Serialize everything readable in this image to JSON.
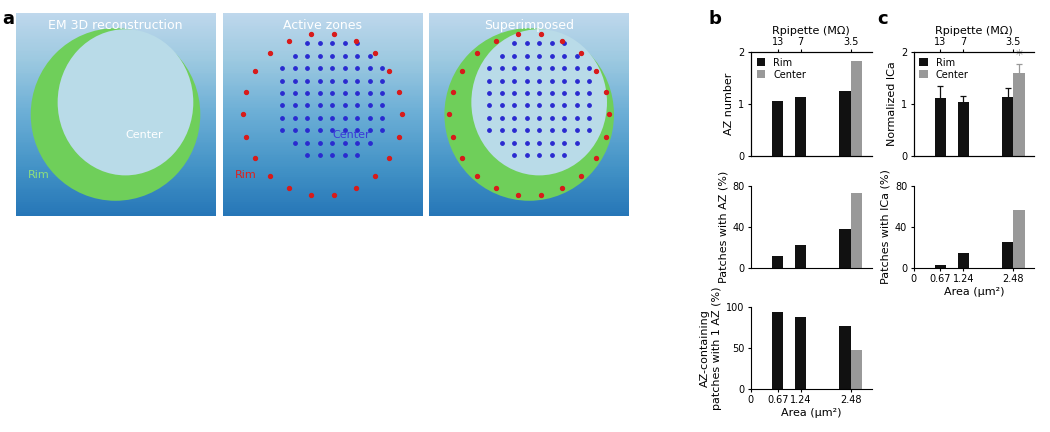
{
  "panel_labels": [
    "a",
    "b",
    "c"
  ],
  "panel_a": {
    "images": [
      {
        "title": "EM 3D reconstruction",
        "labels": [
          {
            "text": "Rim",
            "color": "#8fe07a"
          },
          {
            "text": "Center",
            "color": "#ffffff"
          }
        ]
      },
      {
        "title": "Active zones",
        "labels": [
          {
            "text": "Rim",
            "color": "#e0201b"
          },
          {
            "text": "Center",
            "color": "#3a3ad8"
          }
        ]
      },
      {
        "title": "Superimposed",
        "labels": []
      }
    ]
  },
  "chart_data": [
    {
      "type": "bar",
      "ylabel": "AZ number",
      "xlim": [
        0,
        3
      ],
      "ylim": [
        0,
        2
      ],
      "yticks": [
        0,
        1,
        2
      ],
      "x2label": "Rpipette (MΩ)",
      "x2ticks": [
        {
          "value": 0.67,
          "label": "13"
        },
        {
          "value": 1.24,
          "label": "7"
        },
        {
          "value": 2.48,
          "label": "3.5"
        }
      ],
      "tick_labels": "y",
      "legend": "upper left",
      "series": [
        {
          "name": "Rim",
          "color": "#111111",
          "x": [
            0.67,
            1.24,
            2.48
          ],
          "values": [
            1.05,
            1.13,
            1.25
          ]
        },
        {
          "name": "Center",
          "color": "#999999",
          "x": [
            2.48
          ],
          "values": [
            1.83
          ]
        }
      ]
    },
    {
      "type": "bar",
      "ylabel": "Patches with AZ (%)",
      "xlim": [
        0,
        3
      ],
      "ylim": [
        0,
        80
      ],
      "yticks": [
        0,
        40,
        80
      ],
      "tick_labels": "y",
      "series": [
        {
          "color": "#111111",
          "x": [
            0.67,
            1.24,
            2.48
          ],
          "values": [
            12,
            22,
            38
          ]
        },
        {
          "color": "#999999",
          "x": [
            2.48
          ],
          "values": [
            73
          ]
        }
      ]
    },
    {
      "type": "bar",
      "ylabel": "AZ-containing\npatches with 1 AZ (%)",
      "xlabel": "Area (μm²)",
      "xlim": [
        0,
        3
      ],
      "xticks": [
        0,
        0.67,
        1.24,
        2.48
      ],
      "ylim": [
        0,
        100
      ],
      "yticks": [
        0,
        50,
        100
      ],
      "series": [
        {
          "color": "#111111",
          "x": [
            0.67,
            1.24,
            2.48
          ],
          "values": [
            94,
            88,
            77
          ]
        },
        {
          "color": "#999999",
          "x": [
            2.48
          ],
          "values": [
            47
          ]
        }
      ]
    },
    {
      "type": "bar",
      "ylabel": "Normalized ICa",
      "xlim": [
        0,
        3
      ],
      "ylim": [
        0,
        2
      ],
      "yticks": [
        0,
        1,
        2
      ],
      "x2label": "Rpipette (MΩ)",
      "x2ticks": [
        {
          "value": 0.67,
          "label": "13"
        },
        {
          "value": 1.24,
          "label": "7"
        },
        {
          "value": 2.48,
          "label": "3.5"
        }
      ],
      "tick_labels": "y",
      "legend": "upper left",
      "series": [
        {
          "name": "Rim",
          "color": "#111111",
          "x": [
            0.67,
            1.24,
            2.48
          ],
          "values": [
            1.1,
            1.03,
            1.12
          ],
          "errors": [
            0.25,
            0.12,
            0.18
          ]
        },
        {
          "name": "Center",
          "color": "#999999",
          "x": [
            2.48
          ],
          "values": [
            1.6
          ],
          "errors": [
            0.17
          ]
        }
      ],
      "annotations": [
        {
          "text": "*",
          "series": "Center",
          "index": 0,
          "y": 1.8,
          "color": "#999999"
        }
      ]
    },
    {
      "type": "bar",
      "ylabel": "Patches with ICa (%)",
      "xlabel": "Area (μm²)",
      "xlim": [
        0,
        3
      ],
      "xticks": [
        0,
        0.67,
        1.24,
        2.48
      ],
      "ylim": [
        0,
        80
      ],
      "yticks": [
        0,
        40,
        80
      ],
      "series": [
        {
          "color": "#111111",
          "x": [
            0.67,
            1.24,
            2.48
          ],
          "values": [
            3,
            14,
            25
          ]
        },
        {
          "color": "#999999",
          "x": [
            2.48
          ],
          "values": [
            56
          ]
        }
      ]
    }
  ]
}
